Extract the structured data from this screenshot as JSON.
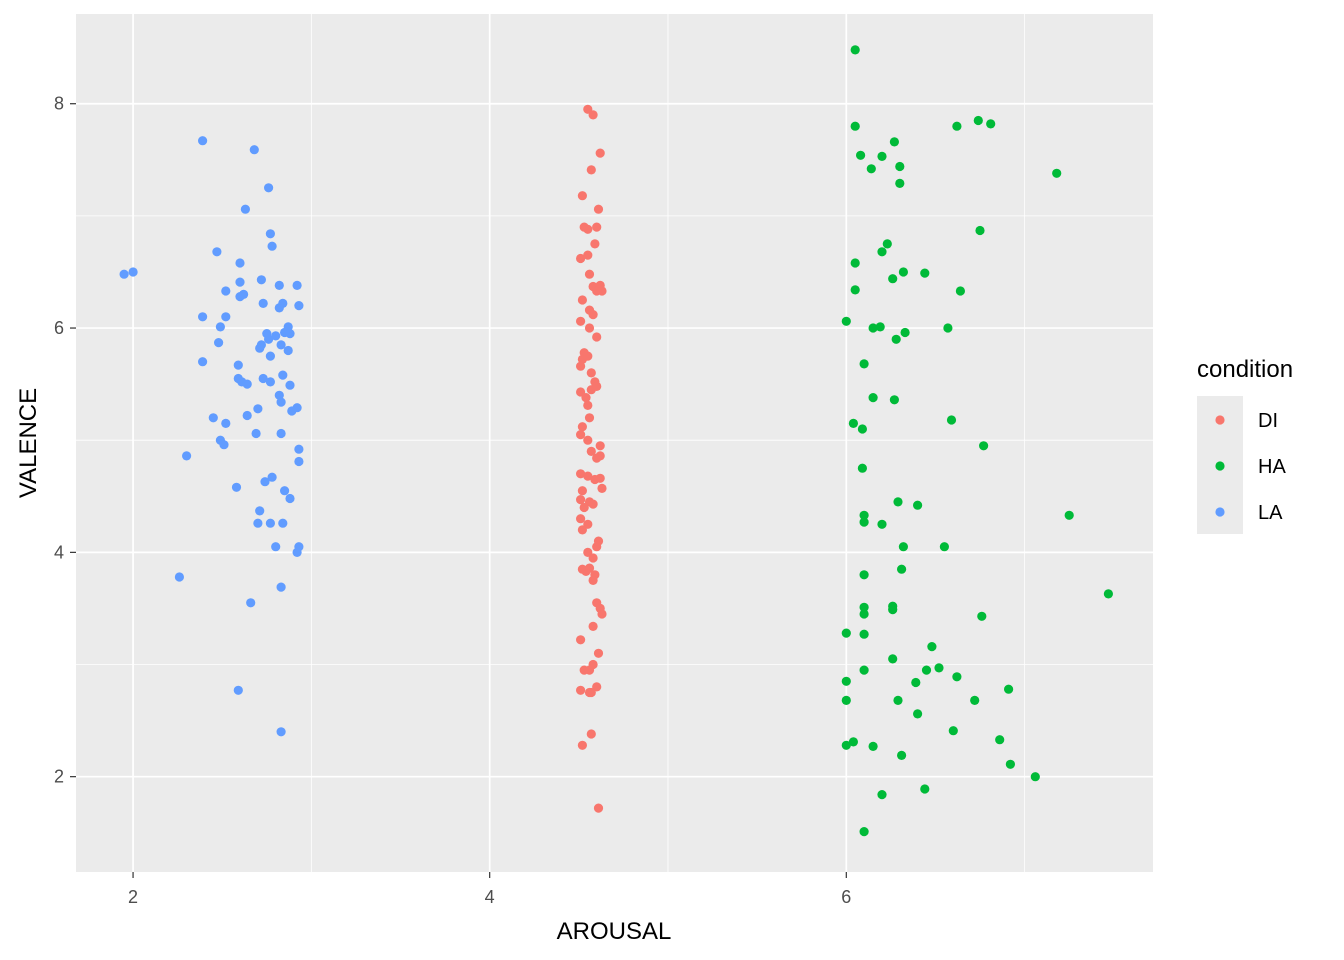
{
  "chart_data": {
    "type": "scatter",
    "xlabel": "AROUSAL",
    "ylabel": "VALENCE",
    "xlim": [
      1.68,
      7.72
    ],
    "ylim": [
      1.15,
      8.8
    ],
    "x_ticks": [
      2,
      4,
      6
    ],
    "y_ticks": [
      2,
      4,
      6,
      8
    ],
    "x_tick_labels": [
      "2",
      "4",
      "6"
    ],
    "y_tick_labels": [
      "2",
      "4",
      "6",
      "8"
    ],
    "grid": true,
    "legend": {
      "title": "condition",
      "position": "right"
    },
    "series": [
      {
        "name": "DI",
        "color": "#F8766D",
        "points": [
          [
            4.55,
            7.95
          ],
          [
            4.58,
            7.9
          ],
          [
            4.62,
            7.56
          ],
          [
            4.57,
            7.41
          ],
          [
            4.52,
            7.18
          ],
          [
            4.61,
            7.06
          ],
          [
            4.53,
            6.9
          ],
          [
            4.55,
            6.88
          ],
          [
            4.6,
            6.9
          ],
          [
            4.59,
            6.75
          ],
          [
            4.51,
            6.62
          ],
          [
            4.55,
            6.65
          ],
          [
            4.56,
            6.48
          ],
          [
            4.58,
            6.37
          ],
          [
            4.62,
            6.38
          ],
          [
            4.6,
            6.33
          ],
          [
            4.63,
            6.33
          ],
          [
            4.52,
            6.25
          ],
          [
            4.56,
            6.16
          ],
          [
            4.58,
            6.12
          ],
          [
            4.51,
            6.06
          ],
          [
            4.56,
            6.0
          ],
          [
            4.6,
            5.92
          ],
          [
            4.53,
            5.78
          ],
          [
            4.52,
            5.72
          ],
          [
            4.55,
            5.75
          ],
          [
            4.51,
            5.66
          ],
          [
            4.57,
            5.6
          ],
          [
            4.59,
            5.52
          ],
          [
            4.6,
            5.48
          ],
          [
            4.51,
            5.43
          ],
          [
            4.54,
            5.38
          ],
          [
            4.57,
            5.45
          ],
          [
            4.55,
            5.31
          ],
          [
            4.56,
            5.2
          ],
          [
            4.52,
            5.12
          ],
          [
            4.51,
            5.05
          ],
          [
            4.55,
            5.0
          ],
          [
            4.62,
            4.95
          ],
          [
            4.57,
            4.9
          ],
          [
            4.6,
            4.84
          ],
          [
            4.62,
            4.86
          ],
          [
            4.51,
            4.7
          ],
          [
            4.55,
            4.68
          ],
          [
            4.59,
            4.65
          ],
          [
            4.62,
            4.66
          ],
          [
            4.63,
            4.57
          ],
          [
            4.52,
            4.55
          ],
          [
            4.51,
            4.47
          ],
          [
            4.56,
            4.45
          ],
          [
            4.58,
            4.43
          ],
          [
            4.53,
            4.4
          ],
          [
            4.51,
            4.3
          ],
          [
            4.55,
            4.25
          ],
          [
            4.52,
            4.2
          ],
          [
            4.61,
            4.1
          ],
          [
            4.6,
            4.05
          ],
          [
            4.55,
            4.0
          ],
          [
            4.58,
            3.95
          ],
          [
            4.52,
            3.85
          ],
          [
            4.54,
            3.83
          ],
          [
            4.56,
            3.86
          ],
          [
            4.59,
            3.8
          ],
          [
            4.58,
            3.75
          ],
          [
            4.6,
            3.55
          ],
          [
            4.62,
            3.5
          ],
          [
            4.63,
            3.45
          ],
          [
            4.58,
            3.34
          ],
          [
            4.51,
            3.22
          ],
          [
            4.61,
            3.1
          ],
          [
            4.58,
            3.0
          ],
          [
            4.56,
            2.95
          ],
          [
            4.53,
            2.95
          ],
          [
            4.6,
            2.8
          ],
          [
            4.51,
            2.77
          ],
          [
            4.57,
            2.75
          ],
          [
            4.56,
            2.75
          ],
          [
            4.57,
            2.38
          ],
          [
            4.52,
            2.28
          ],
          [
            4.61,
            1.72
          ]
        ]
      },
      {
        "name": "HA",
        "color": "#00BA38",
        "points": [
          [
            6.05,
            8.48
          ],
          [
            6.05,
            7.8
          ],
          [
            6.62,
            7.8
          ],
          [
            6.74,
            7.85
          ],
          [
            6.81,
            7.82
          ],
          [
            6.27,
            7.66
          ],
          [
            6.08,
            7.54
          ],
          [
            6.2,
            7.53
          ],
          [
            6.14,
            7.42
          ],
          [
            6.3,
            7.44
          ],
          [
            7.18,
            7.38
          ],
          [
            6.3,
            7.29
          ],
          [
            6.75,
            6.87
          ],
          [
            6.23,
            6.75
          ],
          [
            6.2,
            6.68
          ],
          [
            6.05,
            6.58
          ],
          [
            6.32,
            6.5
          ],
          [
            6.44,
            6.49
          ],
          [
            6.26,
            6.44
          ],
          [
            6.05,
            6.34
          ],
          [
            6.64,
            6.33
          ],
          [
            6.0,
            6.06
          ],
          [
            6.15,
            6.0
          ],
          [
            6.19,
            6.01
          ],
          [
            6.57,
            6.0
          ],
          [
            6.33,
            5.96
          ],
          [
            6.28,
            5.9
          ],
          [
            6.1,
            5.68
          ],
          [
            6.15,
            5.38
          ],
          [
            6.27,
            5.36
          ],
          [
            6.59,
            5.18
          ],
          [
            6.04,
            5.15
          ],
          [
            6.09,
            5.1
          ],
          [
            6.77,
            4.95
          ],
          [
            6.09,
            4.75
          ],
          [
            6.29,
            4.45
          ],
          [
            6.4,
            4.42
          ],
          [
            7.25,
            4.33
          ],
          [
            6.1,
            4.33
          ],
          [
            6.1,
            4.27
          ],
          [
            6.2,
            4.25
          ],
          [
            6.32,
            4.05
          ],
          [
            6.55,
            4.05
          ],
          [
            6.31,
            3.85
          ],
          [
            6.1,
            3.8
          ],
          [
            7.47,
            3.63
          ],
          [
            6.1,
            3.51
          ],
          [
            6.26,
            3.52
          ],
          [
            6.26,
            3.49
          ],
          [
            6.1,
            3.45
          ],
          [
            6.76,
            3.43
          ],
          [
            6.0,
            3.28
          ],
          [
            6.1,
            3.27
          ],
          [
            6.48,
            3.16
          ],
          [
            6.26,
            3.05
          ],
          [
            6.52,
            2.97
          ],
          [
            6.45,
            2.95
          ],
          [
            6.1,
            2.95
          ],
          [
            6.62,
            2.89
          ],
          [
            6.39,
            2.84
          ],
          [
            6.0,
            2.85
          ],
          [
            6.91,
            2.78
          ],
          [
            6.0,
            2.68
          ],
          [
            6.72,
            2.68
          ],
          [
            6.29,
            2.68
          ],
          [
            6.4,
            2.56
          ],
          [
            6.6,
            2.41
          ],
          [
            6.86,
            2.33
          ],
          [
            6.04,
            2.31
          ],
          [
            6.15,
            2.27
          ],
          [
            6.0,
            2.28
          ],
          [
            6.31,
            2.19
          ],
          [
            6.92,
            2.11
          ],
          [
            7.06,
            2.0
          ],
          [
            6.44,
            1.89
          ],
          [
            6.2,
            1.84
          ],
          [
            6.1,
            1.51
          ]
        ]
      },
      {
        "name": "LA",
        "color": "#619CFF",
        "points": [
          [
            2.39,
            7.67
          ],
          [
            2.68,
            7.59
          ],
          [
            2.76,
            7.25
          ],
          [
            2.63,
            7.06
          ],
          [
            2.77,
            6.84
          ],
          [
            2.78,
            6.73
          ],
          [
            2.47,
            6.68
          ],
          [
            2.6,
            6.58
          ],
          [
            1.95,
            6.48
          ],
          [
            2.0,
            6.5
          ],
          [
            2.72,
            6.43
          ],
          [
            2.6,
            6.41
          ],
          [
            2.82,
            6.38
          ],
          [
            2.92,
            6.38
          ],
          [
            2.62,
            6.3
          ],
          [
            2.52,
            6.33
          ],
          [
            2.6,
            6.28
          ],
          [
            2.73,
            6.22
          ],
          [
            2.84,
            6.22
          ],
          [
            2.82,
            6.18
          ],
          [
            2.93,
            6.2
          ],
          [
            2.39,
            6.1
          ],
          [
            2.52,
            6.1
          ],
          [
            2.49,
            6.01
          ],
          [
            2.87,
            6.01
          ],
          [
            2.85,
            5.96
          ],
          [
            2.88,
            5.95
          ],
          [
            2.75,
            5.95
          ],
          [
            2.8,
            5.93
          ],
          [
            2.76,
            5.9
          ],
          [
            2.48,
            5.87
          ],
          [
            2.72,
            5.85
          ],
          [
            2.83,
            5.85
          ],
          [
            2.71,
            5.82
          ],
          [
            2.87,
            5.8
          ],
          [
            2.77,
            5.75
          ],
          [
            2.59,
            5.67
          ],
          [
            2.39,
            5.7
          ],
          [
            2.84,
            5.58
          ],
          [
            2.73,
            5.55
          ],
          [
            2.59,
            5.55
          ],
          [
            2.61,
            5.52
          ],
          [
            2.77,
            5.52
          ],
          [
            2.64,
            5.5
          ],
          [
            2.88,
            5.49
          ],
          [
            2.82,
            5.4
          ],
          [
            2.83,
            5.34
          ],
          [
            2.92,
            5.29
          ],
          [
            2.7,
            5.28
          ],
          [
            2.89,
            5.26
          ],
          [
            2.64,
            5.22
          ],
          [
            2.45,
            5.2
          ],
          [
            2.52,
            5.15
          ],
          [
            2.69,
            5.06
          ],
          [
            2.83,
            5.06
          ],
          [
            2.49,
            5.0
          ],
          [
            2.51,
            4.96
          ],
          [
            2.93,
            4.92
          ],
          [
            2.93,
            4.81
          ],
          [
            2.3,
            4.86
          ],
          [
            2.78,
            4.67
          ],
          [
            2.74,
            4.63
          ],
          [
            2.58,
            4.58
          ],
          [
            2.85,
            4.55
          ],
          [
            2.88,
            4.48
          ],
          [
            2.71,
            4.37
          ],
          [
            2.77,
            4.26
          ],
          [
            2.84,
            4.26
          ],
          [
            2.7,
            4.26
          ],
          [
            2.8,
            4.05
          ],
          [
            2.93,
            4.05
          ],
          [
            2.92,
            4.0
          ],
          [
            2.26,
            3.78
          ],
          [
            2.83,
            3.69
          ],
          [
            2.66,
            3.55
          ],
          [
            2.59,
            2.77
          ],
          [
            2.83,
            2.4
          ]
        ]
      }
    ]
  },
  "colors": {
    "panel_background": "#EBEBEB",
    "grid_major": "#FFFFFF",
    "tick_text": "#4D4D4D"
  }
}
